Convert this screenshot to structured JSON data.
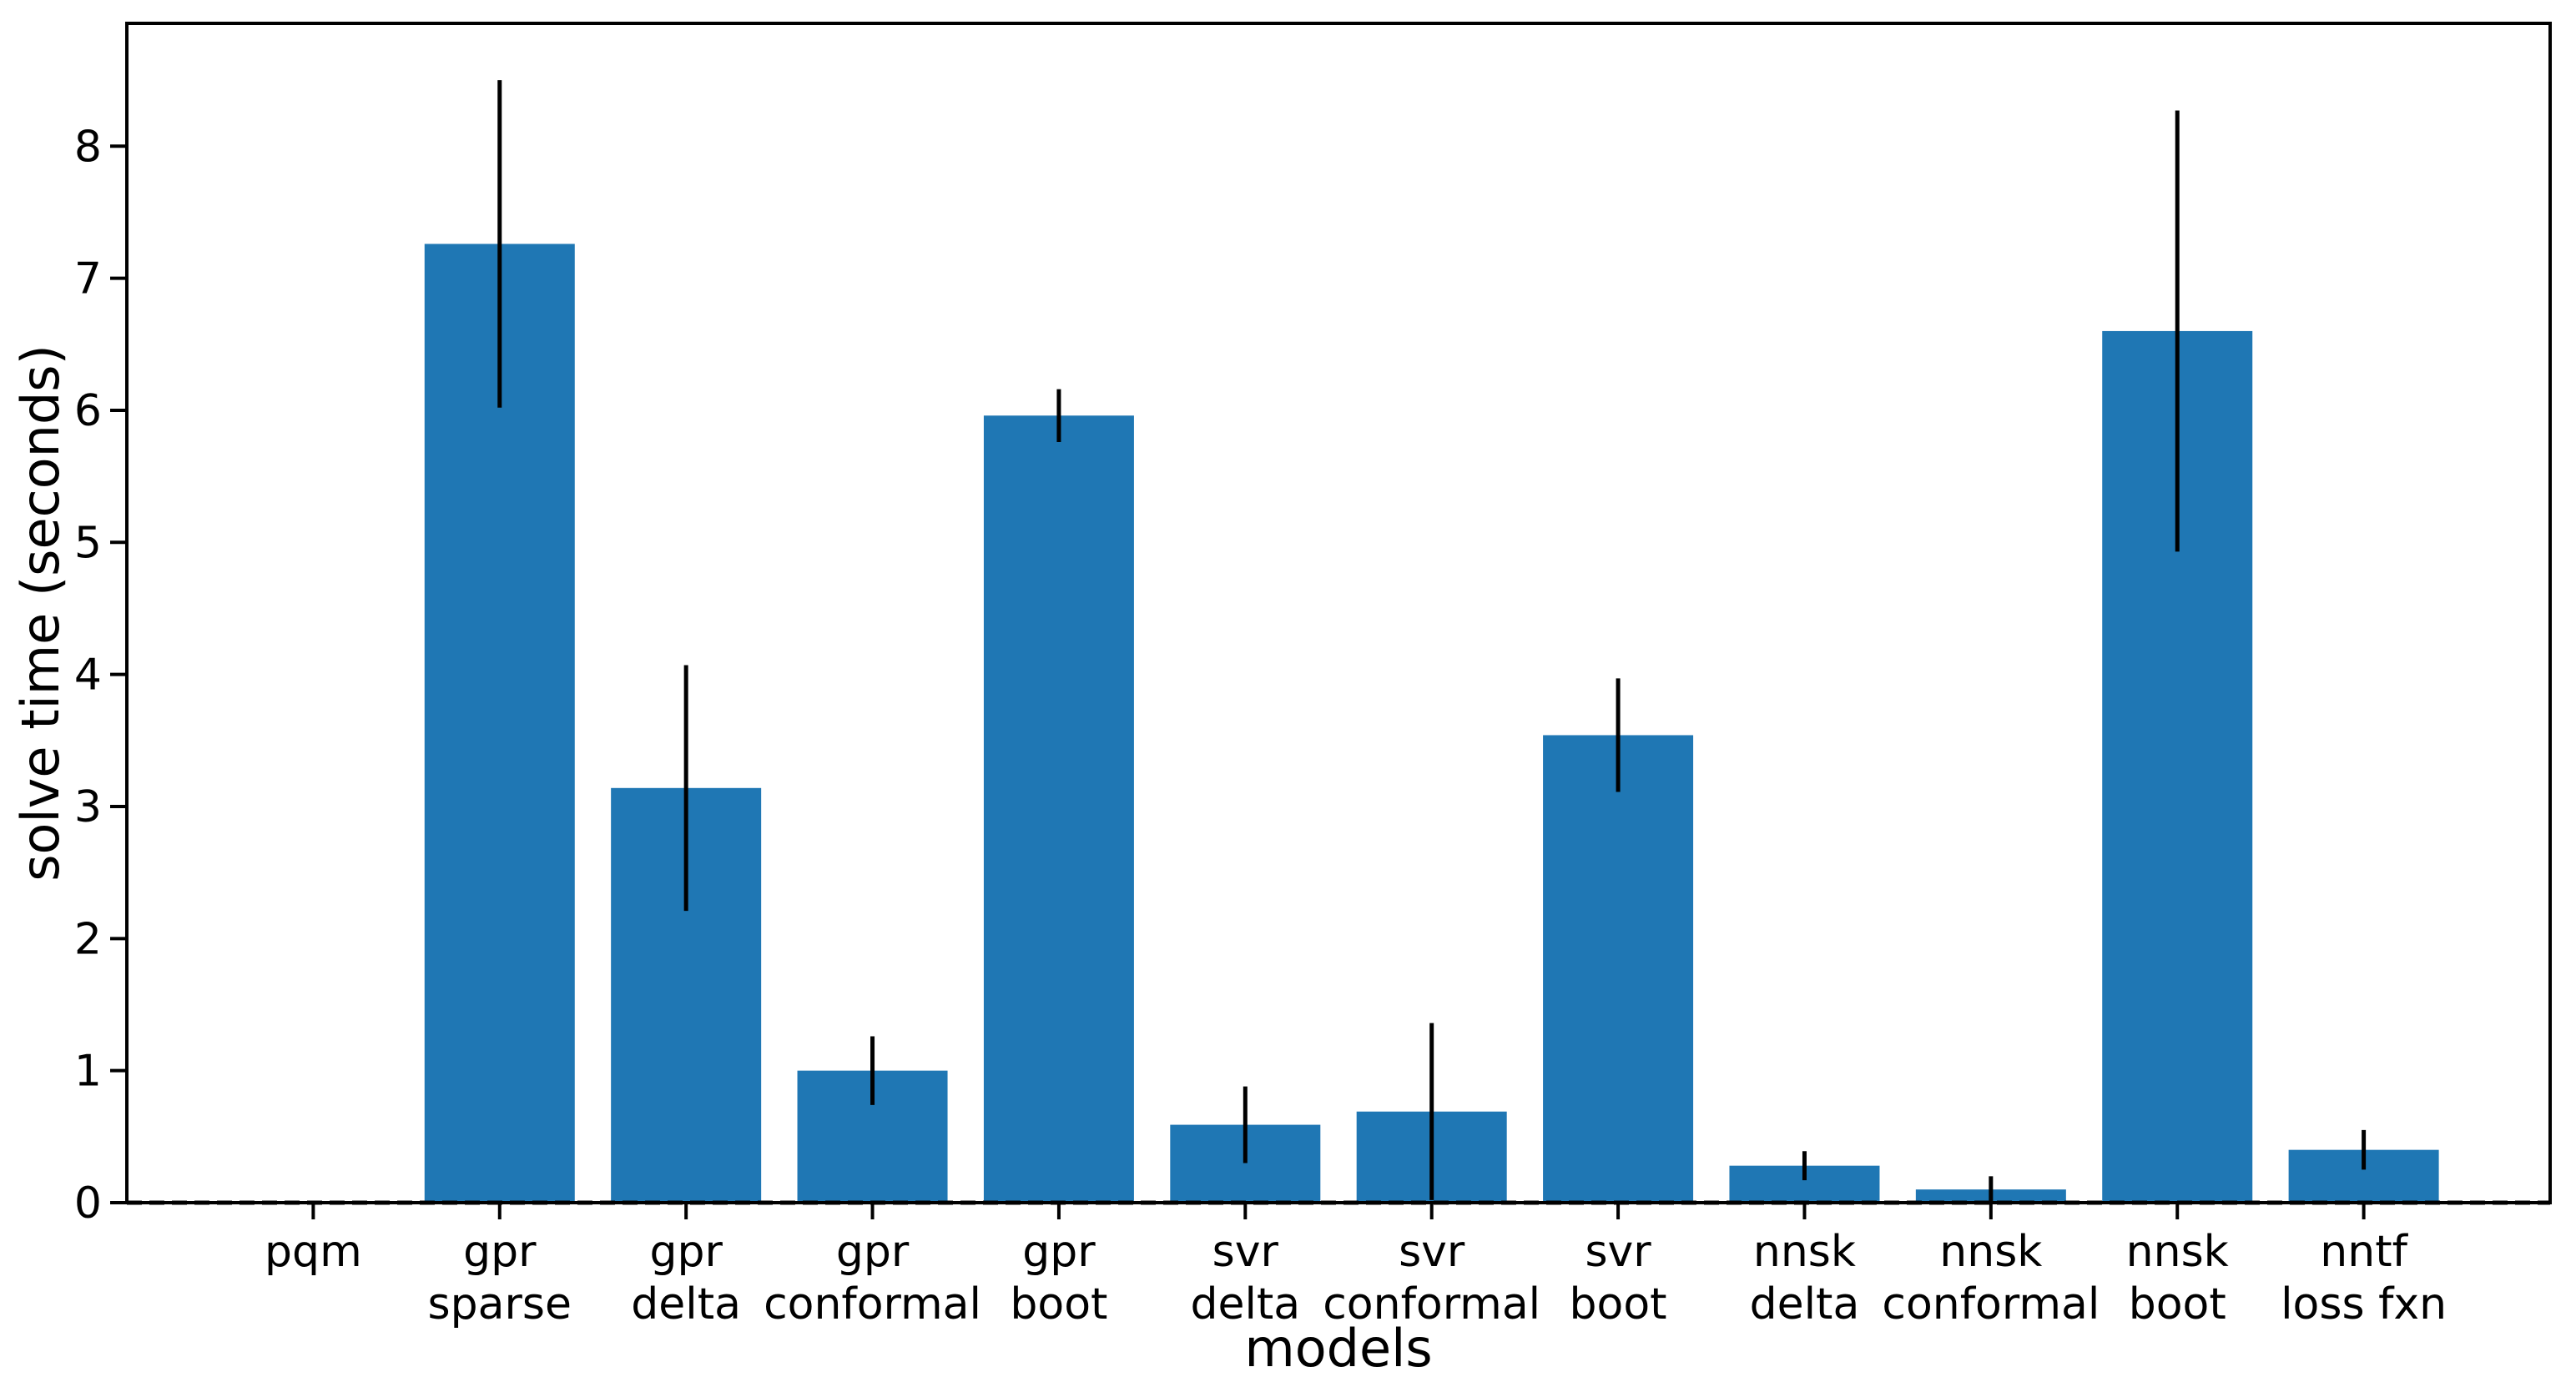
{
  "chart_data": {
    "type": "bar",
    "title": "",
    "xlabel": "models",
    "ylabel": "solve time (seconds)",
    "categories": [
      "pqm",
      "gpr sparse",
      "gpr delta",
      "gpr conformal",
      "gpr boot",
      "svr delta",
      "svr conformal",
      "svr boot",
      "nnsk delta",
      "nnsk conformal",
      "nnsk boot",
      "nntf loss fxn"
    ],
    "category_lines": [
      [
        "pqm"
      ],
      [
        "gpr",
        "sparse"
      ],
      [
        "gpr",
        "delta"
      ],
      [
        "gpr",
        "conformal"
      ],
      [
        "gpr",
        "boot"
      ],
      [
        "svr",
        "delta"
      ],
      [
        "svr",
        "conformal"
      ],
      [
        "svr",
        "boot"
      ],
      [
        "nnsk",
        "delta"
      ],
      [
        "nnsk",
        "conformal"
      ],
      [
        "nnsk",
        "boot"
      ],
      [
        "nntf",
        "loss fxn"
      ]
    ],
    "values": [
      0.01,
      7.26,
      3.14,
      1.0,
      5.96,
      0.59,
      0.69,
      3.54,
      0.28,
      0.1,
      6.6,
      0.4
    ],
    "error_bars": [
      0,
      1.24,
      0.93,
      0.26,
      0.2,
      0.29,
      0.67,
      0.43,
      0.11,
      0.1,
      1.67,
      0.15
    ],
    "ylim": [
      0,
      8.93
    ],
    "yticks": [
      0,
      1,
      2,
      3,
      4,
      5,
      6,
      7,
      8
    ],
    "grid": false,
    "legend": false,
    "bar_color": "#1f77b4",
    "error_bar_color": "#000000",
    "axis_color": "#000000",
    "background_color": "#ffffff",
    "zero_line": {
      "value": 0,
      "style": "dashed",
      "color": "#000000"
    }
  }
}
